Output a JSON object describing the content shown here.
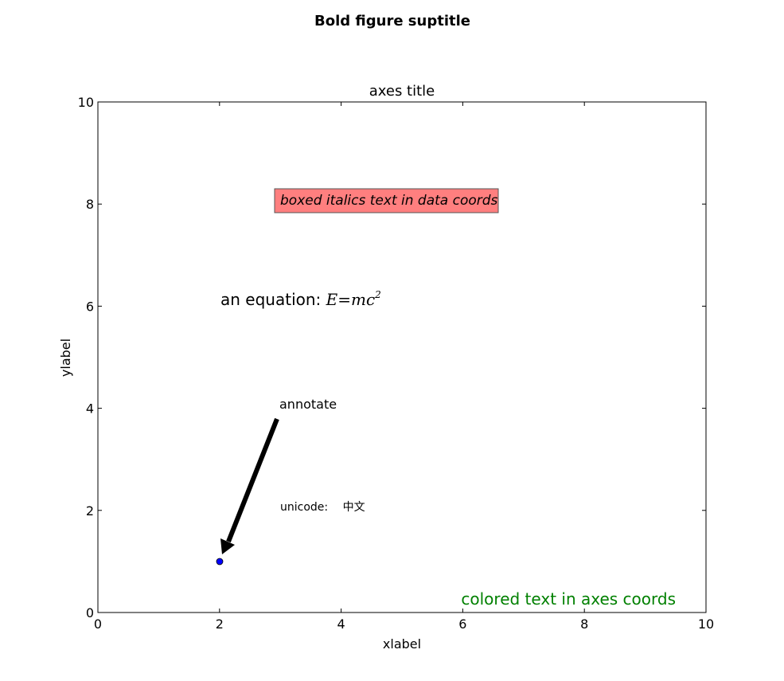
{
  "figure": {
    "suptitle": "Bold figure suptitle"
  },
  "chart_data": {
    "type": "scatter",
    "title": "axes title",
    "xlabel": "xlabel",
    "ylabel": "ylabel",
    "xlim": [
      0,
      10
    ],
    "ylim": [
      0,
      10
    ],
    "xticks": [
      "0",
      "2",
      "4",
      "6",
      "8",
      "10"
    ],
    "yticks": [
      "0",
      "2",
      "4",
      "6",
      "8",
      "10"
    ],
    "grid": false,
    "points": [
      {
        "x": 2,
        "y": 1,
        "color": "#0000ff"
      }
    ],
    "texts": {
      "boxed": {
        "text": "boxed italics text in data coords",
        "x": 3,
        "y": 8,
        "box_color": "#ff7f7f"
      },
      "equation": {
        "label": "an equation: ",
        "math": "E=mc",
        "sup": "2",
        "x": 2,
        "y": 6
      },
      "unicode": {
        "text": "unicode: ",
        "chars": "中文",
        "x": 3,
        "y": 2
      },
      "annotate": {
        "text": "annotate",
        "x": 3,
        "y": 4,
        "xy": [
          2,
          1
        ]
      },
      "axes_coords": {
        "text": "colored text in axes coords",
        "color": "#008000"
      }
    }
  }
}
